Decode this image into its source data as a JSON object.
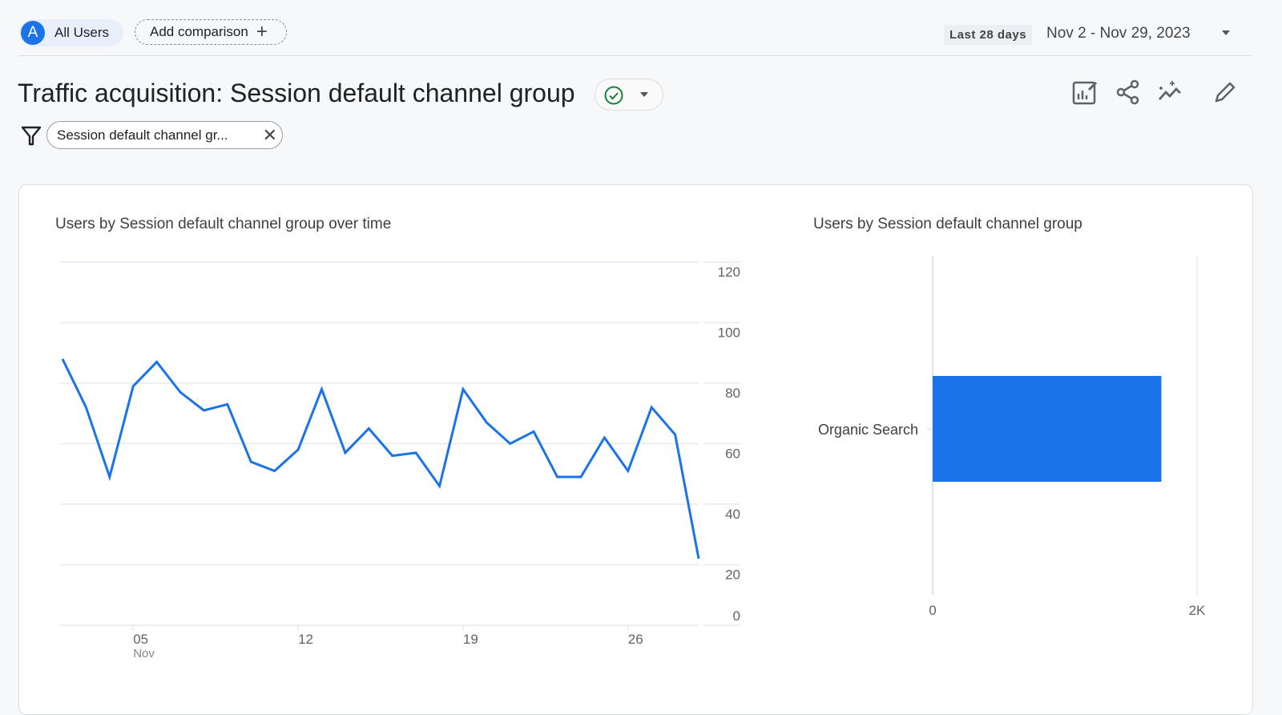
{
  "header": {
    "segment": {
      "avatar_letter": "A",
      "label": "All Users"
    },
    "add_comparison": {
      "label": "Add comparison",
      "icon": "plus-icon"
    },
    "date_range": {
      "preset": "Last 28 days",
      "value": "Nov 2 - Nov 29, 2023"
    }
  },
  "page": {
    "title": "Traffic acquisition: Session default channel group",
    "status_icon": "check-circle-icon",
    "filter_chip": "Session default channel gr...",
    "toolbar": [
      "customize-report-icon",
      "share-icon",
      "insights-icon",
      "edit-icon"
    ]
  },
  "colors": {
    "accent": "#1a73e8",
    "status_ok": "#188038"
  },
  "chart_data": [
    {
      "type": "line",
      "title": "Users by Session default channel group over time",
      "x": [
        "Nov 2",
        "Nov 3",
        "Nov 4",
        "Nov 5",
        "Nov 6",
        "Nov 7",
        "Nov 8",
        "Nov 9",
        "Nov 10",
        "Nov 11",
        "Nov 12",
        "Nov 13",
        "Nov 14",
        "Nov 15",
        "Nov 16",
        "Nov 17",
        "Nov 18",
        "Nov 19",
        "Nov 20",
        "Nov 21",
        "Nov 22",
        "Nov 23",
        "Nov 24",
        "Nov 25",
        "Nov 26",
        "Nov 27",
        "Nov 28",
        "Nov 29"
      ],
      "series": [
        {
          "values": [
            88,
            72,
            49,
            79,
            87,
            77,
            71,
            73,
            54,
            51,
            58,
            78,
            57,
            65,
            56,
            57,
            46,
            78,
            67,
            60,
            64,
            49,
            49,
            62,
            51,
            72,
            63,
            22
          ]
        }
      ],
      "x_ticks": [
        {
          "label": "05",
          "sub": "Nov",
          "index": 3
        },
        {
          "label": "12",
          "index": 10
        },
        {
          "label": "19",
          "index": 17
        },
        {
          "label": "26",
          "index": 24
        }
      ],
      "y_ticks": [
        "0",
        "20",
        "40",
        "60",
        "80",
        "100",
        "120"
      ],
      "ylim": [
        0,
        120
      ],
      "grid": true,
      "y_axis_side": "right",
      "color": "#1a73e8"
    },
    {
      "type": "bar",
      "orientation": "horizontal",
      "title": "Users by Session default channel group",
      "categories": [
        "Organic Search"
      ],
      "values": [
        1730
      ],
      "x_ticks": [
        "0",
        "2K"
      ],
      "xlim": [
        0,
        2000
      ],
      "color": "#1a73e8"
    }
  ]
}
